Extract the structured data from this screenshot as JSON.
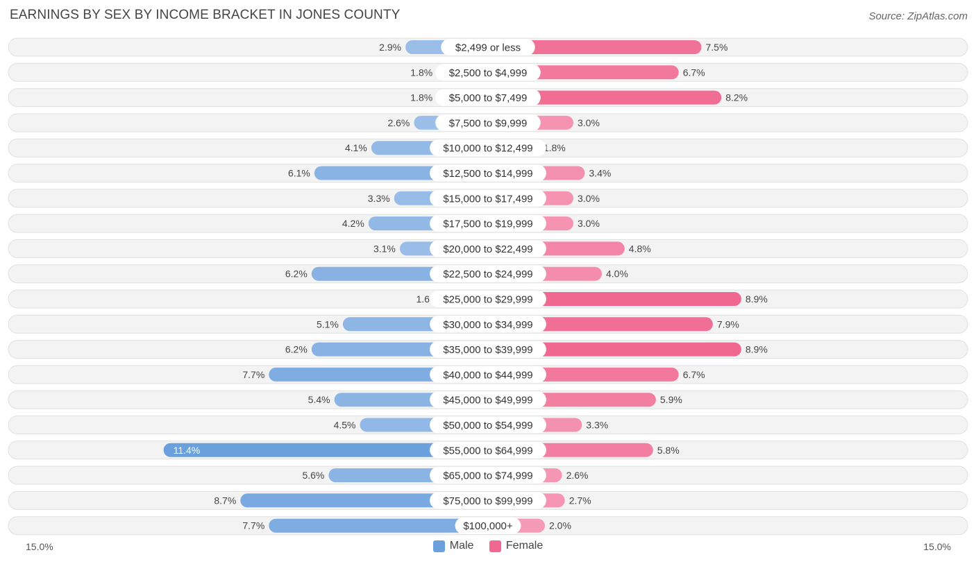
{
  "header": {
    "title": "EARNINGS BY SEX BY INCOME BRACKET IN JONES COUNTY",
    "source": "Source: ZipAtlas.com"
  },
  "legend": {
    "male_label": "Male",
    "female_label": "Female"
  },
  "axis": {
    "left_label": "15.0%",
    "right_label": "15.0%"
  },
  "colors": {
    "male_light": "#aac8ec",
    "male_dark": "#6aa0dc",
    "female_light": "#f7a9c2",
    "female_dark": "#f0688f",
    "row_bg": "#f3f3f3",
    "row_border": "#e0e0e0"
  },
  "chart_data": {
    "type": "bar",
    "orientation": "horizontal-diverging",
    "title": "EARNINGS BY SEX BY INCOME BRACKET IN JONES COUNTY",
    "xlim": [
      -15.0,
      15.0
    ],
    "unit": "%",
    "categories": [
      "$2,499 or less",
      "$2,500 to $4,999",
      "$5,000 to $7,499",
      "$7,500 to $9,999",
      "$10,000 to $12,499",
      "$12,500 to $14,999",
      "$15,000 to $17,499",
      "$17,500 to $19,999",
      "$20,000 to $22,499",
      "$22,500 to $24,999",
      "$25,000 to $29,999",
      "$30,000 to $34,999",
      "$35,000 to $39,999",
      "$40,000 to $44,999",
      "$45,000 to $49,999",
      "$50,000 to $54,999",
      "$55,000 to $64,999",
      "$65,000 to $74,999",
      "$75,000 to $99,999",
      "$100,000+"
    ],
    "series": [
      {
        "name": "Male",
        "values": [
          2.9,
          1.8,
          1.8,
          2.6,
          4.1,
          6.1,
          3.3,
          4.2,
          3.1,
          6.2,
          1.6,
          5.1,
          6.2,
          7.7,
          5.4,
          4.5,
          11.4,
          5.6,
          8.7,
          7.7
        ]
      },
      {
        "name": "Female",
        "values": [
          7.5,
          6.7,
          8.2,
          3.0,
          1.8,
          3.4,
          3.0,
          3.0,
          4.8,
          4.0,
          8.9,
          7.9,
          8.9,
          6.7,
          5.9,
          3.3,
          5.8,
          2.6,
          2.7,
          2.0
        ]
      }
    ],
    "labels_male": [
      "2.9%",
      "1.8%",
      "1.8%",
      "2.6%",
      "4.1%",
      "6.1%",
      "3.3%",
      "4.2%",
      "3.1%",
      "6.2%",
      "1.6%",
      "5.1%",
      "6.2%",
      "7.7%",
      "5.4%",
      "4.5%",
      "11.4%",
      "5.6%",
      "8.7%",
      "7.7%"
    ],
    "labels_female": [
      "7.5%",
      "6.7%",
      "8.2%",
      "3.0%",
      "1.8%",
      "3.4%",
      "3.0%",
      "3.0%",
      "4.8%",
      "4.0%",
      "8.9%",
      "7.9%",
      "8.9%",
      "6.7%",
      "5.9%",
      "3.3%",
      "5.8%",
      "2.6%",
      "2.7%",
      "2.0%"
    ]
  }
}
